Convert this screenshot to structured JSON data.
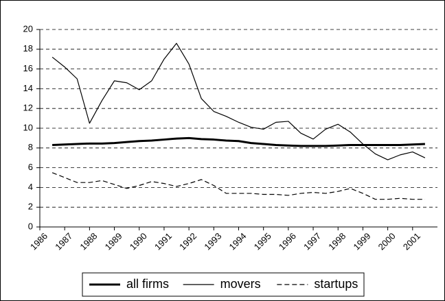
{
  "chart_data": {
    "type": "line",
    "x": [
      1986.5,
      1987,
      1987.5,
      1988,
      1988.5,
      1989,
      1989.5,
      1990,
      1990.5,
      1991,
      1991.5,
      1992,
      1992.5,
      1993,
      1993.5,
      1994,
      1994.5,
      1995,
      1995.5,
      1996,
      1996.5,
      1997,
      1997.5,
      1998,
      1998.5,
      1999,
      1999.5,
      2000,
      2000.5,
      2001,
      2001.5
    ],
    "series": [
      {
        "name": "all firms",
        "color": "#000000",
        "line_width": 3,
        "dash": "solid",
        "values": [
          8.3,
          8.35,
          8.4,
          8.45,
          8.45,
          8.5,
          8.6,
          8.7,
          8.75,
          8.85,
          8.95,
          9.0,
          8.9,
          8.85,
          8.75,
          8.7,
          8.5,
          8.4,
          8.3,
          8.25,
          8.2,
          8.2,
          8.2,
          8.25,
          8.3,
          8.3,
          8.3,
          8.3,
          8.3,
          8.35,
          8.4
        ]
      },
      {
        "name": "movers",
        "color": "#000000",
        "line_width": 1.2,
        "dash": "solid",
        "values": [
          17.2,
          16.2,
          15.0,
          10.5,
          12.8,
          14.8,
          14.6,
          13.9,
          14.8,
          17.0,
          18.6,
          16.5,
          13.0,
          11.7,
          11.2,
          10.6,
          10.1,
          9.9,
          10.6,
          10.7,
          9.5,
          8.9,
          9.9,
          10.4,
          9.6,
          8.4,
          7.4,
          6.8,
          7.3,
          7.6,
          7.0
        ]
      },
      {
        "name": "startups",
        "color": "#000000",
        "line_width": 1.2,
        "dash": "dashed",
        "values": [
          5.5,
          5.0,
          4.5,
          4.5,
          4.7,
          4.3,
          3.9,
          4.2,
          4.6,
          4.4,
          4.1,
          4.4,
          4.8,
          4.2,
          3.4,
          3.4,
          3.4,
          3.3,
          3.3,
          3.2,
          3.4,
          3.5,
          3.4,
          3.6,
          3.9,
          3.4,
          2.8,
          2.8,
          2.9,
          2.8,
          2.8
        ]
      }
    ],
    "xlim": [
      1986,
      2002
    ],
    "xticks": [
      1986,
      1987,
      1988,
      1989,
      1990,
      1991,
      1992,
      1993,
      1994,
      1995,
      1996,
      1997,
      1998,
      1999,
      2000,
      2001
    ],
    "ylim": [
      0,
      20
    ],
    "yticks": [
      0,
      2,
      4,
      6,
      8,
      10,
      12,
      14,
      16,
      18,
      20
    ],
    "grid": true,
    "legend": "bottom"
  }
}
